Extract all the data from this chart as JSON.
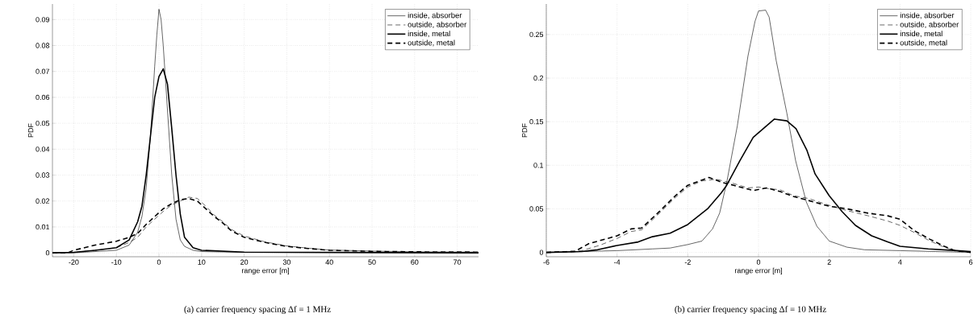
{
  "chart_data": [
    {
      "type": "line",
      "xlabel": "range error [m]",
      "ylabel": "PDF",
      "xlim": [
        -25,
        75
      ],
      "ylim": [
        -0.0015,
        0.096
      ],
      "xticks": [
        -20,
        -10,
        0,
        10,
        20,
        30,
        40,
        50,
        60,
        70
      ],
      "yticks": [
        0,
        0.01,
        0.02,
        0.03,
        0.04,
        0.05,
        0.06,
        0.07,
        0.08,
        0.09
      ],
      "grid": true,
      "legend": "top right",
      "annotations": [
        "(a) carrier frequency spacing Δf = 1 MHz"
      ],
      "series": [
        {
          "name": "inside, absorber",
          "color": "#000000",
          "line_style": "solid",
          "x": [
            -25,
            -20,
            -15,
            -10,
            -7,
            -5,
            -4,
            -3,
            -2,
            -1,
            -0.5,
            0,
            0.5,
            1,
            2,
            3,
            4,
            5,
            6,
            8,
            10,
            20,
            75
          ],
          "values": [
            0,
            0,
            0.0005,
            0.001,
            0.003,
            0.008,
            0.014,
            0.025,
            0.045,
            0.072,
            0.084,
            0.094,
            0.09,
            0.08,
            0.055,
            0.03,
            0.013,
            0.005,
            0.0025,
            0.001,
            0.0005,
            0.0002,
            0
          ]
        },
        {
          "name": "outside, absorber",
          "color": "#000000",
          "line_style": "dashed",
          "x": [
            -25,
            -20,
            -15,
            -10,
            -7,
            -5,
            -3,
            -1,
            1,
            3,
            5,
            7,
            9,
            11,
            13,
            15,
            17,
            20,
            25,
            30,
            35,
            40,
            50,
            60,
            75
          ],
          "values": [
            0,
            0.0002,
            0.001,
            0.002,
            0.004,
            0.006,
            0.01,
            0.013,
            0.016,
            0.0185,
            0.02,
            0.0215,
            0.021,
            0.018,
            0.0145,
            0.012,
            0.009,
            0.0065,
            0.0042,
            0.0027,
            0.0018,
            0.0011,
            0.0007,
            0.0004,
            0.0003
          ]
        },
        {
          "name": "inside, metal",
          "color": "#000000",
          "line_style": "solid",
          "x": [
            -25,
            -20,
            -15,
            -10,
            -7,
            -5,
            -4,
            -3,
            -2,
            -1,
            0,
            1,
            2,
            3,
            4,
            5,
            6,
            8,
            10,
            20,
            75
          ],
          "values": [
            0,
            0.0002,
            0.001,
            0.002,
            0.005,
            0.012,
            0.018,
            0.03,
            0.045,
            0.06,
            0.068,
            0.071,
            0.065,
            0.048,
            0.03,
            0.015,
            0.006,
            0.002,
            0.001,
            0.0003,
            0
          ]
        },
        {
          "name": "outside, metal",
          "color": "#000000",
          "line_style": "dashed",
          "x": [
            -25,
            -21.5,
            -20,
            -15,
            -10,
            -7,
            -5,
            -3,
            -1,
            1,
            3,
            5,
            7,
            9,
            11,
            13,
            15,
            17,
            20,
            25,
            30,
            35,
            40,
            50,
            60,
            75
          ],
          "values": [
            0,
            0,
            0.001,
            0.003,
            0.0045,
            0.006,
            0.0075,
            0.011,
            0.014,
            0.017,
            0.019,
            0.0205,
            0.021,
            0.02,
            0.017,
            0.014,
            0.0115,
            0.0085,
            0.006,
            0.004,
            0.0025,
            0.0017,
            0.001,
            0.0006,
            0.0004,
            0.0003
          ]
        }
      ]
    },
    {
      "type": "line",
      "xlabel": "range error [m]",
      "ylabel": "PDF",
      "xlim": [
        -6,
        6
      ],
      "ylim": [
        -0.005,
        0.285
      ],
      "xticks": [
        -6,
        -4,
        -2,
        0,
        2,
        4,
        6
      ],
      "yticks": [
        0,
        0.05,
        0.1,
        0.15,
        0.2,
        0.25
      ],
      "grid": true,
      "legend": "top right",
      "annotations": [
        "(b) carrier frequency spacing Δf = 10 MHz"
      ],
      "series": [
        {
          "name": "inside, absorber",
          "color": "#000000",
          "line_style": "solid",
          "x": [
            -6,
            -5,
            -4,
            -3,
            -2.5,
            -2,
            -1.6,
            -1.3,
            -1.1,
            -0.9,
            -0.6,
            -0.3,
            -0.1,
            0,
            0.2,
            0.3,
            0.5,
            0.8,
            1.05,
            1.35,
            1.65,
            2,
            2.5,
            3,
            4,
            5,
            6
          ],
          "values": [
            0,
            0.001,
            0.002,
            0.004,
            0.005,
            0.009,
            0.013,
            0.027,
            0.045,
            0.08,
            0.145,
            0.225,
            0.265,
            0.277,
            0.278,
            0.27,
            0.22,
            0.16,
            0.105,
            0.058,
            0.03,
            0.013,
            0.006,
            0.003,
            0.002,
            0.001,
            0
          ]
        },
        {
          "name": "outside, absorber",
          "color": "#000000",
          "line_style": "dashed",
          "x": [
            -6,
            -5,
            -4.5,
            -4,
            -3.6,
            -3.3,
            -2.8,
            -2.35,
            -2,
            -1.6,
            -1.2,
            -0.7,
            -0.3,
            0,
            0.3,
            0.6,
            1,
            1.4,
            2,
            2.5,
            3.1,
            3.65,
            4,
            4.4,
            4.85,
            5.25,
            5.55,
            6
          ],
          "values": [
            0,
            0.002,
            0.008,
            0.016,
            0.024,
            0.026,
            0.045,
            0.063,
            0.075,
            0.082,
            0.084,
            0.079,
            0.074,
            0.075,
            0.073,
            0.072,
            0.065,
            0.062,
            0.054,
            0.048,
            0.042,
            0.036,
            0.031,
            0.023,
            0.013,
            0.006,
            0.002,
            0
          ]
        },
        {
          "name": "inside, metal",
          "color": "#000000",
          "line_style": "solid",
          "x": [
            -6,
            -5,
            -4.55,
            -4,
            -3.4,
            -3,
            -2.5,
            -2,
            -1.44,
            -1.06,
            -0.9,
            -0.53,
            -0.15,
            0.45,
            0.8,
            1.06,
            1.37,
            1.6,
            2,
            2.36,
            2.74,
            3.2,
            3.65,
            4,
            4.8,
            5.6,
            6
          ],
          "values": [
            0,
            0.001,
            0.003,
            0.008,
            0.012,
            0.018,
            0.022,
            0.032,
            0.05,
            0.068,
            0.077,
            0.105,
            0.132,
            0.153,
            0.151,
            0.142,
            0.117,
            0.09,
            0.065,
            0.047,
            0.031,
            0.019,
            0.012,
            0.007,
            0.004,
            0.002,
            0.001
          ]
        },
        {
          "name": "outside, metal",
          "color": "#000000",
          "line_style": "dashed",
          "x": [
            -6,
            -5.2,
            -4.8,
            -4,
            -3.6,
            -3.3,
            -2.8,
            -2.35,
            -2,
            -1.6,
            -1.4,
            -1,
            -0.7,
            -0.15,
            0.23,
            0.6,
            1,
            1.37,
            2,
            2.5,
            3.1,
            3.65,
            4,
            4.4,
            4.85,
            5.25,
            5.55,
            6
          ],
          "values": [
            0,
            0.001,
            0.01,
            0.019,
            0.027,
            0.028,
            0.047,
            0.065,
            0.077,
            0.083,
            0.086,
            0.08,
            0.077,
            0.071,
            0.074,
            0.07,
            0.064,
            0.06,
            0.053,
            0.05,
            0.045,
            0.042,
            0.038,
            0.025,
            0.015,
            0.007,
            0.002,
            0
          ]
        }
      ]
    }
  ]
}
